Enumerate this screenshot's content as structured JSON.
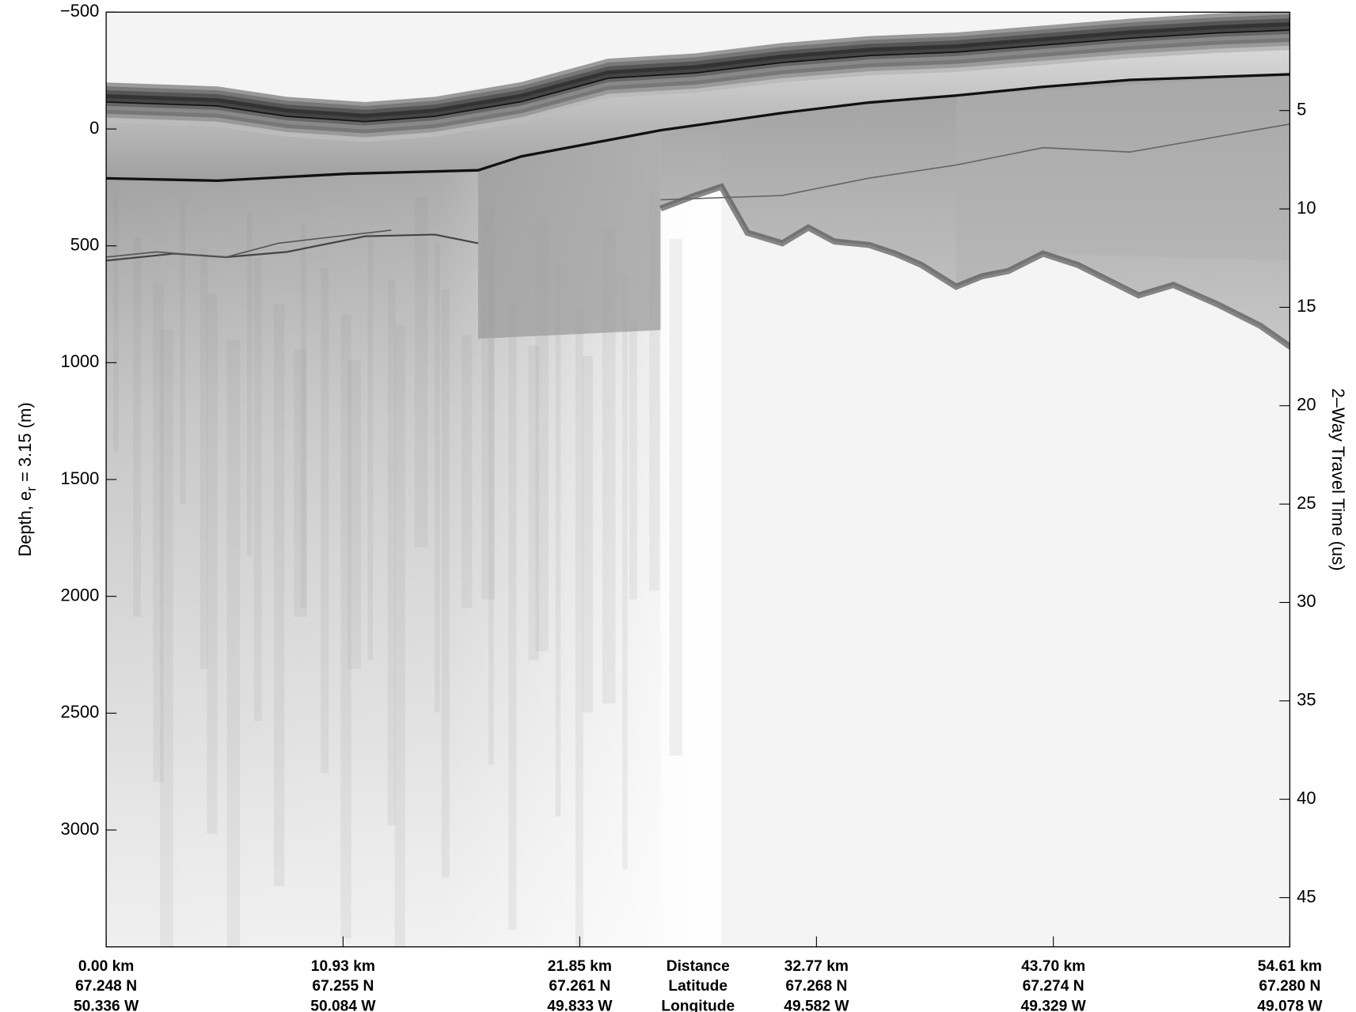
{
  "chart_data": {
    "type": "radargram",
    "ylabel": {
      "text": "Depth, e",
      "subscript": "r",
      "suffix": " = 3.15 (m)"
    },
    "y2label": "2–Way Travel Time (us)",
    "row_labels": [
      "Distance",
      "Latitude",
      "Longitude"
    ],
    "xlim": [
      0,
      54.61
    ],
    "xticks": [
      {
        "value": 0,
        "label": "0.00 km"
      },
      {
        "value": 10.93,
        "label": "10.93 km"
      },
      {
        "value": 21.85,
        "label": "21.85 km"
      },
      {
        "value": 32.77,
        "label": "32.77 km"
      },
      {
        "value": 43.7,
        "label": "43.70 km"
      },
      {
        "value": 54.61,
        "label": "54.61 km"
      }
    ],
    "latitudes": [
      "67.248 N",
      "67.255 N",
      "67.261 N",
      "67.268 N",
      "67.274 N",
      "67.280 N"
    ],
    "longitudes": [
      "50.336 W",
      "50.084 W",
      "49.833 W",
      "49.582 W",
      "49.329 W",
      "49.078 W"
    ],
    "ylim": [
      -500,
      3500
    ],
    "y_inverted": true,
    "yticks": [
      {
        "value": -500,
        "label": "−500"
      },
      0,
      500,
      1000,
      1500,
      2000,
      2500,
      3000
    ],
    "y2lim": [
      0,
      47.5
    ],
    "y2ticks": [
      5,
      10,
      15,
      20,
      25,
      30,
      35,
      40,
      45
    ]
  }
}
